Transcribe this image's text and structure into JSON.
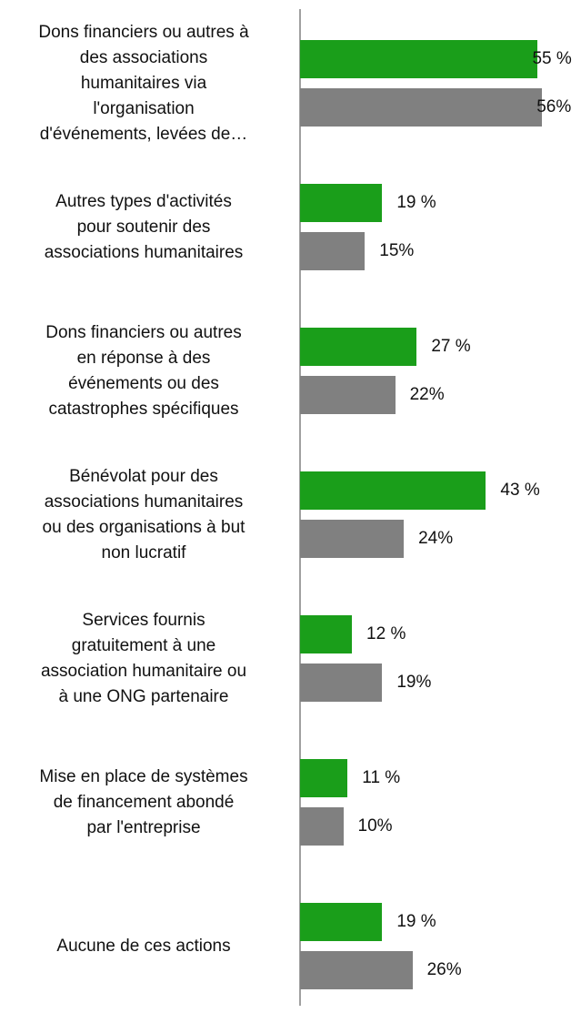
{
  "chart_data": {
    "type": "bar",
    "orientation": "horizontal",
    "categories": [
      "Dons financiers ou autres à\ndes associations\nhumanitaires via\nl'organisation\nd'événements, levées de…",
      "Autres types d'activités\npour soutenir des\nassociations humanitaires",
      "Dons financiers ou autres\nen réponse à des\névénements ou des\ncatastrophes spécifiques",
      "Bénévolat pour des\nassociations humanitaires\nou des organisations à but\nnon lucratif",
      "Services fournis\ngratuitement à une\nassociation humanitaire ou\nà une ONG partenaire",
      "Mise en place de systèmes\nde financement abondé\npar l'entreprise",
      "Aucune de ces actions"
    ],
    "series": [
      {
        "color": "#1a9e1a",
        "values": [
          55,
          19,
          27,
          43,
          12,
          11,
          19
        ],
        "value_labels": [
          "55 %",
          "19 %",
          "27 %",
          "43 %",
          "12 %",
          "11 %",
          "19 %"
        ]
      },
      {
        "color": "#808080",
        "values": [
          56,
          15,
          22,
          24,
          19,
          10,
          26
        ],
        "value_labels": [
          "56%",
          "15%",
          "22%",
          "24%",
          "19%",
          "10%",
          "26%"
        ]
      }
    ],
    "xlim": [
      0,
      65
    ]
  }
}
